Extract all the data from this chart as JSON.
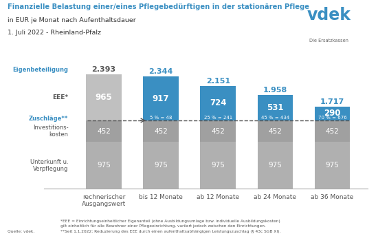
{
  "title_line1": "Finanzielle Belastung einer/eines Pflegebedürftigen in der stationären Pflege",
  "title_line2": "in EUR je Monat nach Aufenthaltsdauer",
  "title_line3": "1. Juli 2022 - Rheinland-Pfalz",
  "categories": [
    "rechnerischer\nAusgangswert",
    "bis 12 Monate",
    "ab 12 Monate",
    "ab 24 Monate",
    "ab 36 Monate"
  ],
  "unterkunft": [
    975,
    975,
    975,
    975,
    975
  ],
  "investitions": [
    452,
    452,
    452,
    452,
    452
  ],
  "eee": [
    965,
    917,
    724,
    531,
    290
  ],
  "totals": [
    2393,
    2344,
    2151,
    1958,
    1717
  ],
  "zuschlag_labels": [
    "",
    "5 % = 48",
    "25 % = 241",
    "45 % = 434",
    "70 % = 676"
  ],
  "color_grey_dark": "#a0a0a0",
  "color_grey_light": "#c0c0c0",
  "color_grey_mid": "#b0b0b0",
  "color_blue": "#3a8fc2",
  "color_title": "#3a8fc2",
  "footnote1": "*EEE = Einrichtungseinheitlicher Eigenanteil (ohne Ausbildungsumlage bzw. individuelle Ausbildungskosten)",
  "footnote2": "gilt einheitlich für alle Bewohner einer Pflegeeinrichtung, variiert jedoch zwischen den Einrichtungen.",
  "footnote3": "**Seit 1.1.2022: Reduzierung des EEE durch einen aufenthaltsabhängigen Leistungszuschlag (§ 43c SGB XI).",
  "source": "Quelle: vdek."
}
